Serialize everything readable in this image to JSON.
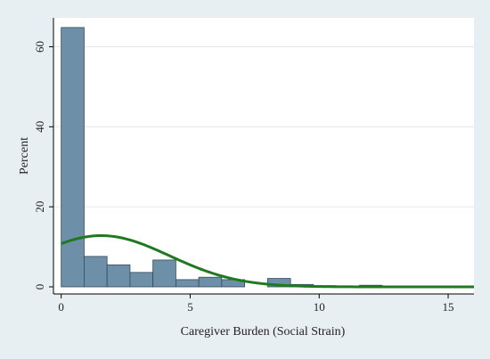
{
  "chart_data": {
    "type": "bar",
    "subtype": "histogram_with_normal_density",
    "title": "",
    "xlabel": "Caregiver Burden (Social Strain)",
    "ylabel": "Percent",
    "xlim": [
      -0.3,
      16
    ],
    "ylim": [
      0,
      65
    ],
    "xticks": [
      0,
      5,
      10,
      15
    ],
    "yticks": [
      0,
      20,
      40,
      60
    ],
    "grid": "horizontal",
    "bin_width": 0.889,
    "bins": [
      {
        "x0": 0.0,
        "x1": 0.889,
        "value": 64.8
      },
      {
        "x0": 0.889,
        "x1": 1.778,
        "value": 7.6
      },
      {
        "x0": 1.778,
        "x1": 2.667,
        "value": 5.5
      },
      {
        "x0": 2.667,
        "x1": 3.556,
        "value": 3.6
      },
      {
        "x0": 3.556,
        "x1": 4.444,
        "value": 6.7
      },
      {
        "x0": 4.444,
        "x1": 5.333,
        "value": 1.8
      },
      {
        "x0": 5.333,
        "x1": 6.222,
        "value": 2.4
      },
      {
        "x0": 6.222,
        "x1": 7.111,
        "value": 1.8
      },
      {
        "x0": 7.111,
        "x1": 8.0,
        "value": 0.0
      },
      {
        "x0": 8.0,
        "x1": 8.889,
        "value": 2.1
      },
      {
        "x0": 8.889,
        "x1": 9.778,
        "value": 0.6
      },
      {
        "x0": 9.778,
        "x1": 10.667,
        "value": 0.3
      },
      {
        "x0": 10.667,
        "x1": 11.556,
        "value": 0.0
      },
      {
        "x0": 11.556,
        "x1": 12.444,
        "value": 0.4
      },
      {
        "x0": 12.444,
        "x1": 13.333,
        "value": 0.0
      },
      {
        "x0": 13.333,
        "x1": 14.222,
        "value": 0.0
      },
      {
        "x0": 14.222,
        "x1": 15.111,
        "value": 0.0
      },
      {
        "x0": 15.111,
        "x1": 16.0,
        "value": 0.0
      }
    ],
    "normal_curve": {
      "mean": 1.55,
      "sd": 2.65,
      "peak_percent": 12.8,
      "x_range": [
        0,
        16
      ]
    },
    "colors": {
      "bar_fill": "#6e8fa8",
      "bar_stroke": "#2f4a5c",
      "curve": "#1f7a1f",
      "plot_bg": "#ffffff",
      "frame_bg": "#e8eff3",
      "grid": "#e6e6e6"
    }
  }
}
